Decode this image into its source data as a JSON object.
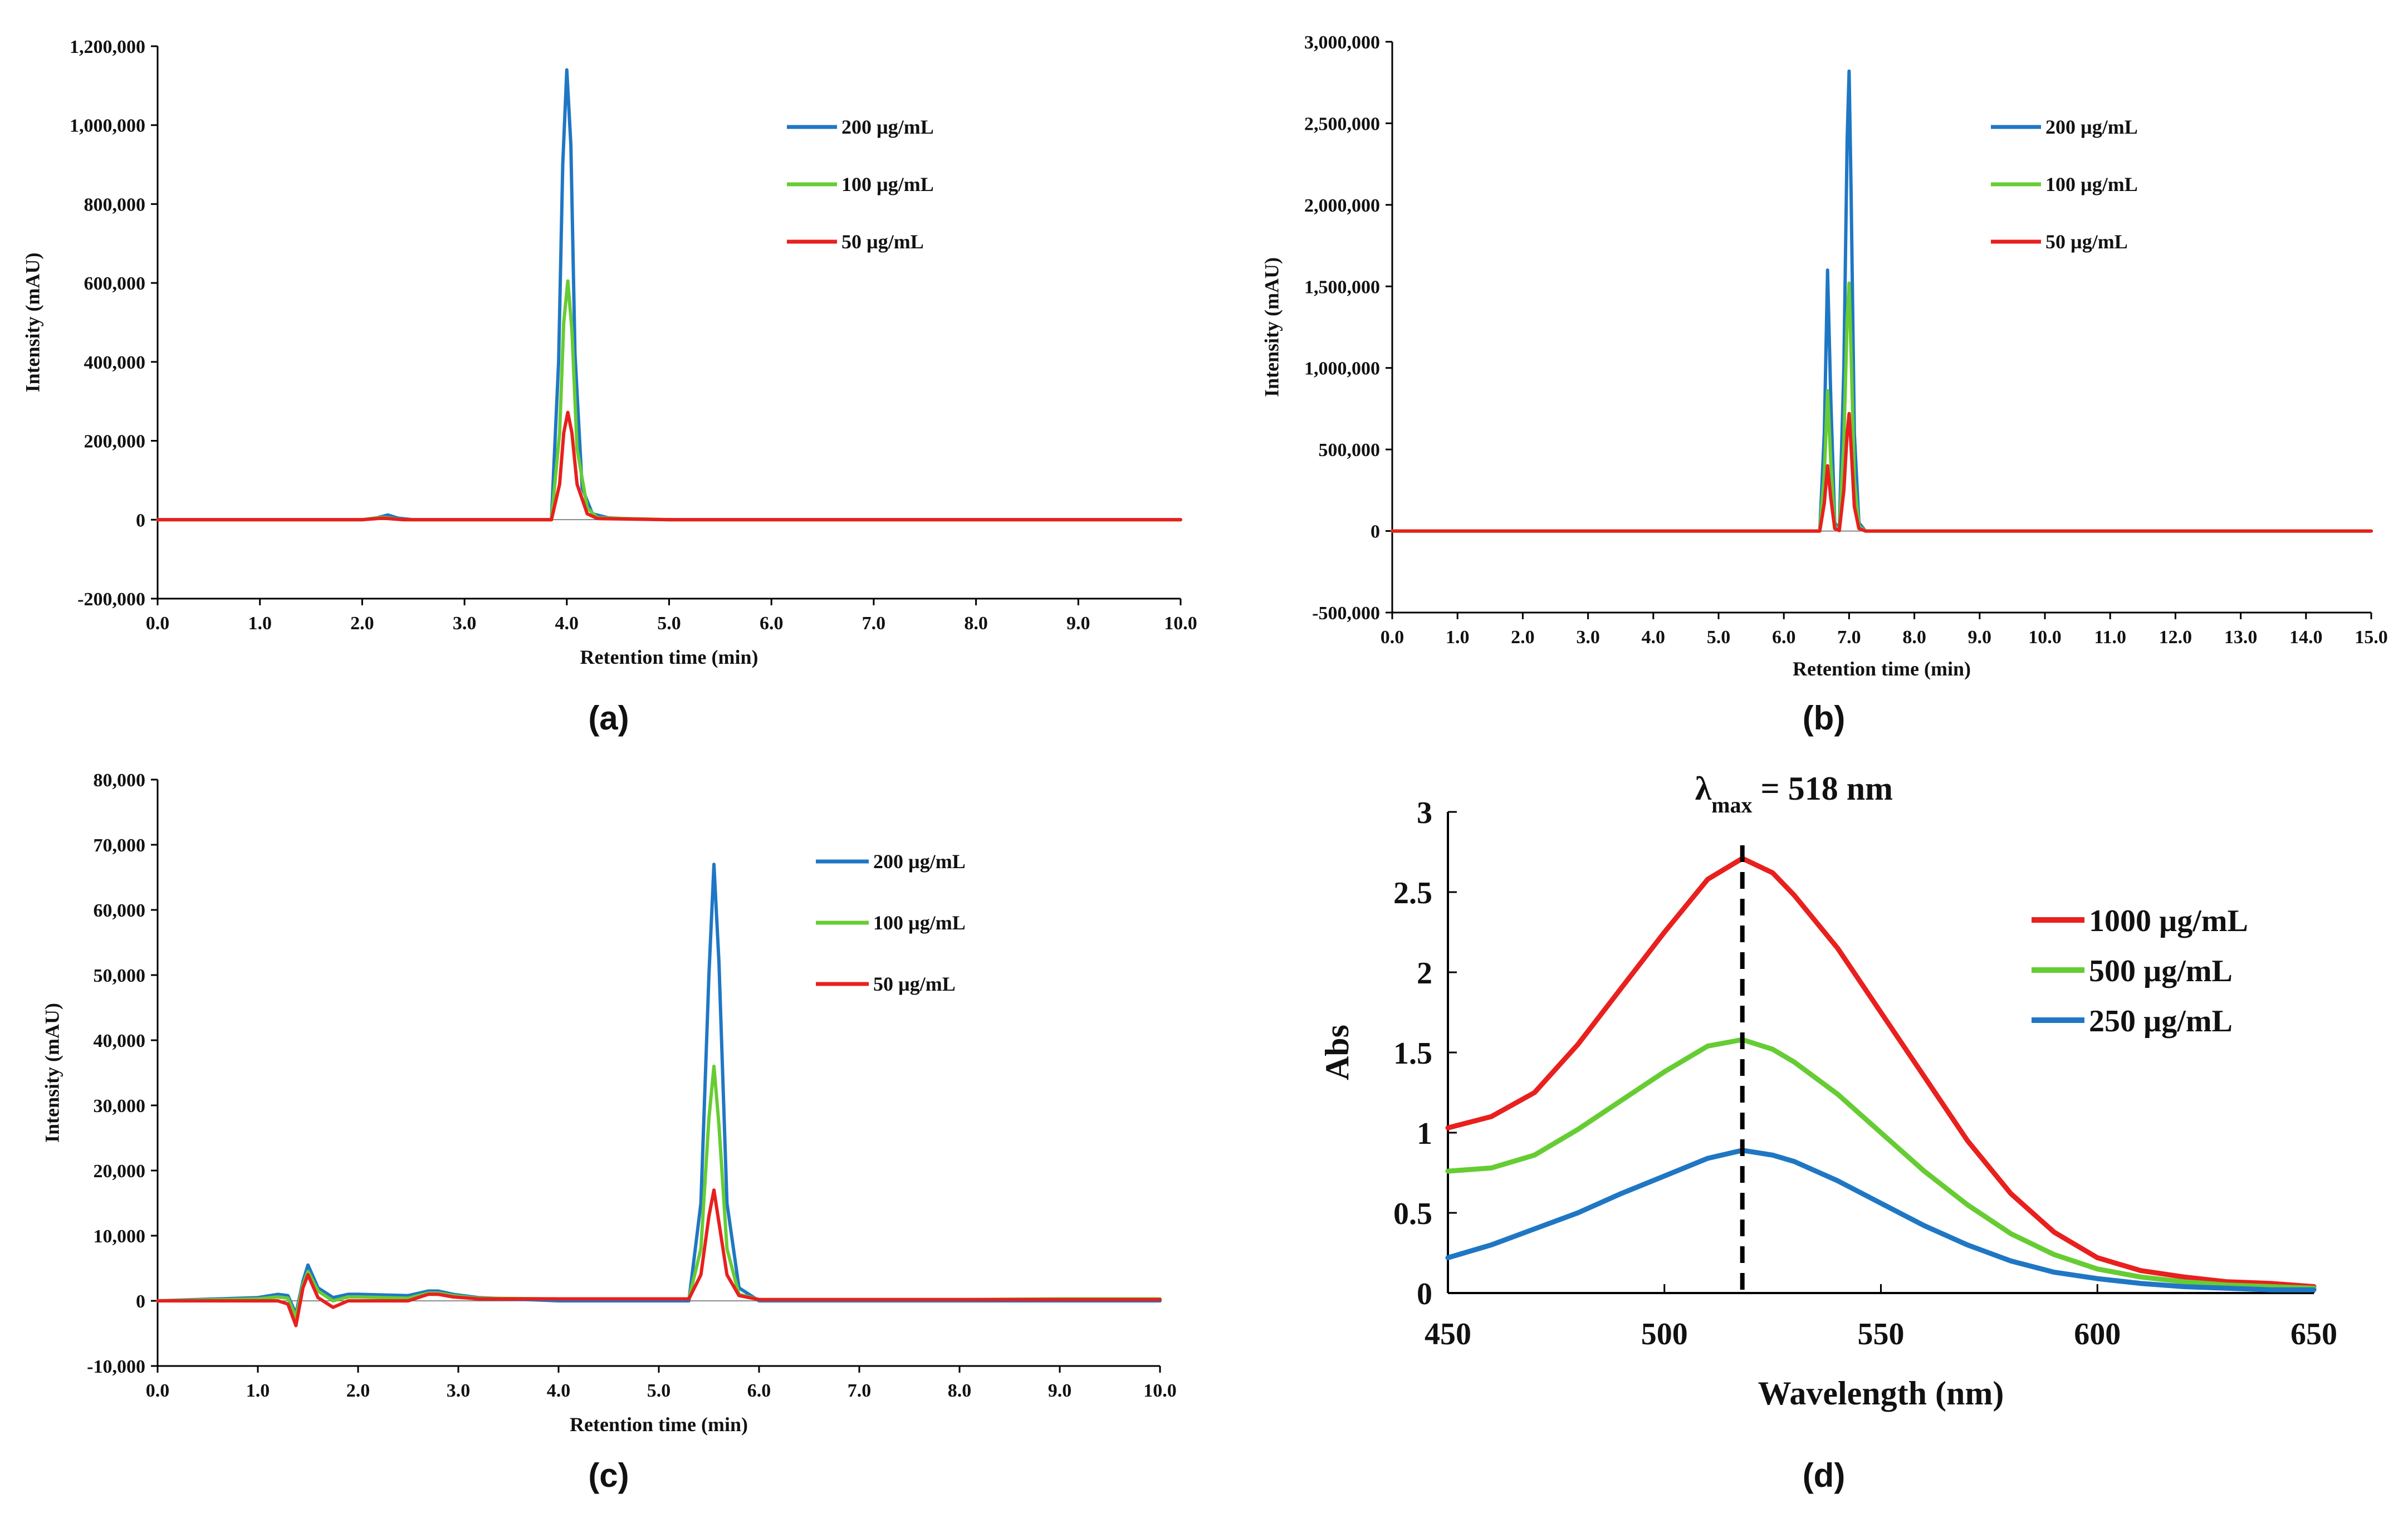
{
  "chart_data": [
    {
      "type": "line",
      "panel_label": "(a)",
      "xlabel": "Retention  time (min)",
      "ylabel": "Intensity  (mAU)",
      "xlim": [
        0,
        10
      ],
      "ylim": [
        -200000,
        1200000
      ],
      "x_ticks": [
        0,
        1,
        2,
        3,
        4,
        5,
        6,
        7,
        8,
        9,
        10
      ],
      "x_tick_labels": [
        "0.0",
        "1.0",
        "2.0",
        "3.0",
        "4.0",
        "5.0",
        "6.0",
        "7.0",
        "8.0",
        "9.0",
        "10.0"
      ],
      "y_ticks": [
        -200000,
        0,
        200000,
        400000,
        600000,
        800000,
        1000000,
        1200000
      ],
      "y_tick_labels": [
        "-200,000",
        "0",
        "200,000",
        "400,000",
        "600,000",
        "800,000",
        "1,000,000",
        "1,200,000"
      ],
      "legend": [
        "200 µg/mL",
        "100 µg/mL",
        "50 µg/mL"
      ],
      "series": [
        {
          "name": "200 µg/mL",
          "color": "#1f77c4",
          "x": [
            0,
            2.0,
            2.15,
            2.25,
            2.35,
            2.5,
            3.85,
            3.92,
            3.96,
            4.0,
            4.04,
            4.08,
            4.15,
            4.25,
            4.4,
            4.6,
            5.0,
            10.0
          ],
          "y": [
            0,
            0,
            5000,
            12000,
            4000,
            0,
            0,
            400000,
            900000,
            1140000,
            950000,
            420000,
            80000,
            15000,
            5000,
            2000,
            0,
            0
          ]
        },
        {
          "name": "100 µg/mL",
          "color": "#66cc33",
          "x": [
            0,
            2.0,
            2.2,
            2.4,
            3.85,
            3.93,
            3.97,
            4.01,
            4.05,
            4.1,
            4.2,
            4.3,
            5.0,
            10.0
          ],
          "y": [
            0,
            0,
            6000,
            0,
            0,
            220000,
            500000,
            605000,
            480000,
            180000,
            30000,
            5000,
            0,
            0
          ]
        },
        {
          "name": "50 µg/mL",
          "color": "#e8201e",
          "x": [
            0,
            2.0,
            2.2,
            2.4,
            3.85,
            3.93,
            3.97,
            4.01,
            4.05,
            4.1,
            4.2,
            4.3,
            5.0,
            10.0
          ],
          "y": [
            0,
            0,
            4000,
            0,
            0,
            90000,
            220000,
            272000,
            220000,
            90000,
            15000,
            3000,
            0,
            0
          ]
        }
      ]
    },
    {
      "type": "line",
      "panel_label": "(b)",
      "xlabel": "Retention  time (min)",
      "ylabel": "Intensity  (mAU)",
      "xlim": [
        0,
        15
      ],
      "ylim": [
        -500000,
        3000000
      ],
      "x_ticks": [
        0,
        1,
        2,
        3,
        4,
        5,
        6,
        7,
        8,
        9,
        10,
        11,
        12,
        13,
        14,
        15
      ],
      "x_tick_labels": [
        "0.0",
        "1.0",
        "2.0",
        "3.0",
        "4.0",
        "5.0",
        "6.0",
        "7.0",
        "8.0",
        "9.0",
        "10.0",
        "11.0",
        "12.0",
        "13.0",
        "14.0",
        "15.0"
      ],
      "y_ticks": [
        -500000,
        0,
        500000,
        1000000,
        1500000,
        2000000,
        2500000,
        3000000
      ],
      "y_tick_labels": [
        "-500,000",
        "0",
        "500,000",
        "1,000,000",
        "1,500,000",
        "2,000,000",
        "2,500,000",
        "3,000,000"
      ],
      "legend": [
        "200 µg/mL",
        "100 µg/mL",
        "50 µg/mL"
      ],
      "series": [
        {
          "name": "200 µg/mL",
          "color": "#1f77c4",
          "x": [
            0,
            6.55,
            6.62,
            6.67,
            6.72,
            6.78,
            6.85,
            6.92,
            6.97,
            7.0,
            7.03,
            7.08,
            7.15,
            7.25,
            15.0
          ],
          "y": [
            0,
            0,
            600000,
            1600000,
            800000,
            50000,
            10000,
            1000000,
            2400000,
            2820000,
            2100000,
            600000,
            50000,
            0,
            0
          ]
        },
        {
          "name": "100 µg/mL",
          "color": "#66cc33",
          "x": [
            0,
            6.55,
            6.62,
            6.67,
            6.72,
            6.78,
            6.85,
            6.92,
            6.97,
            7.0,
            7.03,
            7.08,
            7.15,
            7.25,
            15.0
          ],
          "y": [
            0,
            0,
            350000,
            860000,
            420000,
            30000,
            5000,
            550000,
            1300000,
            1520000,
            1100000,
            320000,
            30000,
            0,
            0
          ]
        },
        {
          "name": "50 µg/mL",
          "color": "#e8201e",
          "x": [
            0,
            6.55,
            6.62,
            6.67,
            6.72,
            6.78,
            6.85,
            6.92,
            6.97,
            7.0,
            7.03,
            7.08,
            7.15,
            7.25,
            15.0
          ],
          "y": [
            0,
            0,
            170000,
            400000,
            200000,
            15000,
            3000,
            250000,
            600000,
            720000,
            520000,
            150000,
            15000,
            0,
            0
          ]
        }
      ]
    },
    {
      "type": "line",
      "panel_label": "(c)",
      "xlabel": "Retention  time (min)",
      "ylabel": "Intensity  (mAU)",
      "xlim": [
        0,
        10
      ],
      "ylim": [
        -10000,
        80000
      ],
      "x_ticks": [
        0,
        1,
        2,
        3,
        4,
        5,
        6,
        7,
        8,
        9,
        10
      ],
      "x_tick_labels": [
        "0.0",
        "1.0",
        "2.0",
        "3.0",
        "4.0",
        "5.0",
        "6.0",
        "7.0",
        "8.0",
        "9.0",
        "10.0"
      ],
      "y_ticks": [
        -10000,
        0,
        10000,
        20000,
        30000,
        40000,
        50000,
        60000,
        70000,
        80000
      ],
      "y_tick_labels": [
        "-10,000",
        "0",
        "10,000",
        "20,000",
        "30,000",
        "40,000",
        "50,000",
        "60,000",
        "70,000",
        "80,000"
      ],
      "legend": [
        "200 µg/mL",
        "100 µg/mL",
        "50 µg/mL"
      ],
      "series": [
        {
          "name": "200 µg/mL",
          "color": "#1f77c4",
          "x": [
            0,
            1.0,
            1.2,
            1.3,
            1.38,
            1.45,
            1.5,
            1.6,
            1.75,
            1.9,
            2.0,
            2.5,
            2.7,
            2.8,
            2.95,
            3.2,
            4.0,
            5.0,
            5.3,
            5.42,
            5.5,
            5.55,
            5.6,
            5.68,
            5.8,
            6.0,
            8.0,
            9.0,
            10.0
          ],
          "y": [
            0,
            500,
            1000,
            800,
            -2000,
            3000,
            5500,
            2000,
            500,
            1000,
            1000,
            800,
            1500,
            1500,
            1000,
            500,
            0,
            0,
            0,
            15000,
            50000,
            67000,
            52000,
            15000,
            2000,
            0,
            0,
            0,
            0
          ]
        },
        {
          "name": "100 µg/mL",
          "color": "#66cc33",
          "x": [
            0,
            1.0,
            1.2,
            1.3,
            1.38,
            1.45,
            1.5,
            1.6,
            1.75,
            1.9,
            2.0,
            2.5,
            2.7,
            2.8,
            2.95,
            3.2,
            4.0,
            5.0,
            5.3,
            5.42,
            5.5,
            5.55,
            5.6,
            5.68,
            5.8,
            6.0,
            8.0,
            9.0,
            10.0
          ],
          "y": [
            0,
            300,
            600,
            400,
            -2500,
            2500,
            4500,
            1500,
            0,
            600,
            600,
            400,
            1200,
            1200,
            800,
            400,
            300,
            300,
            300,
            8000,
            28000,
            36000,
            27000,
            8000,
            1000,
            200,
            200,
            300,
            300
          ]
        },
        {
          "name": "50 µg/mL",
          "color": "#e8201e",
          "x": [
            0,
            1.0,
            1.2,
            1.3,
            1.38,
            1.45,
            1.5,
            1.6,
            1.75,
            1.9,
            2.0,
            2.5,
            2.7,
            2.8,
            2.95,
            3.2,
            4.0,
            5.0,
            5.3,
            5.42,
            5.5,
            5.55,
            5.6,
            5.68,
            5.8,
            6.0,
            8.0,
            9.0,
            10.0
          ],
          "y": [
            0,
            0,
            0,
            -500,
            -3800,
            2000,
            4000,
            500,
            -1000,
            0,
            0,
            0,
            1000,
            1000,
            600,
            300,
            300,
            300,
            300,
            4000,
            13000,
            17000,
            12000,
            4000,
            800,
            200,
            200,
            200,
            200
          ]
        }
      ]
    },
    {
      "type": "line",
      "panel_label": "(d)",
      "xlabel": "Wavelength  (nm)",
      "ylabel": "Abs",
      "xlim": [
        450,
        650
      ],
      "ylim": [
        0,
        3
      ],
      "x_ticks": [
        450,
        500,
        550,
        600,
        650
      ],
      "x_tick_labels": [
        "450",
        "500",
        "550",
        "600",
        "650"
      ],
      "y_ticks": [
        0,
        0.5,
        1,
        1.5,
        2,
        2.5,
        3
      ],
      "y_tick_labels": [
        "0",
        "0.5",
        "1",
        "1.5",
        "2",
        "2.5",
        "3"
      ],
      "annotation": {
        "text": "λ",
        "subscript": "max",
        "suffix": " = 518 nm",
        "x": 518
      },
      "legend": [
        "1000 µg/mL",
        "500 µg/mL",
        "250 µg/mL"
      ],
      "series": [
        {
          "name": "1000 µg/mL",
          "color": "#e8201e",
          "x": [
            450,
            460,
            470,
            480,
            490,
            500,
            510,
            518,
            525,
            530,
            540,
            550,
            560,
            570,
            580,
            590,
            600,
            610,
            620,
            630,
            640,
            650
          ],
          "y": [
            1.03,
            1.1,
            1.25,
            1.55,
            1.9,
            2.25,
            2.58,
            2.71,
            2.62,
            2.48,
            2.15,
            1.75,
            1.35,
            0.95,
            0.62,
            0.38,
            0.22,
            0.14,
            0.1,
            0.07,
            0.06,
            0.04
          ]
        },
        {
          "name": "500 µg/mL",
          "color": "#66cc33",
          "x": [
            450,
            460,
            470,
            480,
            490,
            500,
            510,
            518,
            525,
            530,
            540,
            550,
            560,
            570,
            580,
            590,
            600,
            610,
            620,
            630,
            640,
            650
          ],
          "y": [
            0.76,
            0.78,
            0.86,
            1.02,
            1.2,
            1.38,
            1.54,
            1.58,
            1.52,
            1.44,
            1.24,
            1.0,
            0.76,
            0.55,
            0.37,
            0.24,
            0.15,
            0.1,
            0.07,
            0.05,
            0.04,
            0.03
          ]
        },
        {
          "name": "250 µg/mL",
          "color": "#1f77c4",
          "x": [
            450,
            460,
            470,
            480,
            490,
            500,
            510,
            518,
            525,
            530,
            540,
            550,
            560,
            570,
            580,
            590,
            600,
            610,
            620,
            630,
            640,
            650
          ],
          "y": [
            0.22,
            0.3,
            0.4,
            0.5,
            0.62,
            0.73,
            0.84,
            0.89,
            0.86,
            0.82,
            0.7,
            0.56,
            0.42,
            0.3,
            0.2,
            0.13,
            0.09,
            0.06,
            0.04,
            0.03,
            0.02,
            0.02
          ]
        }
      ]
    }
  ]
}
